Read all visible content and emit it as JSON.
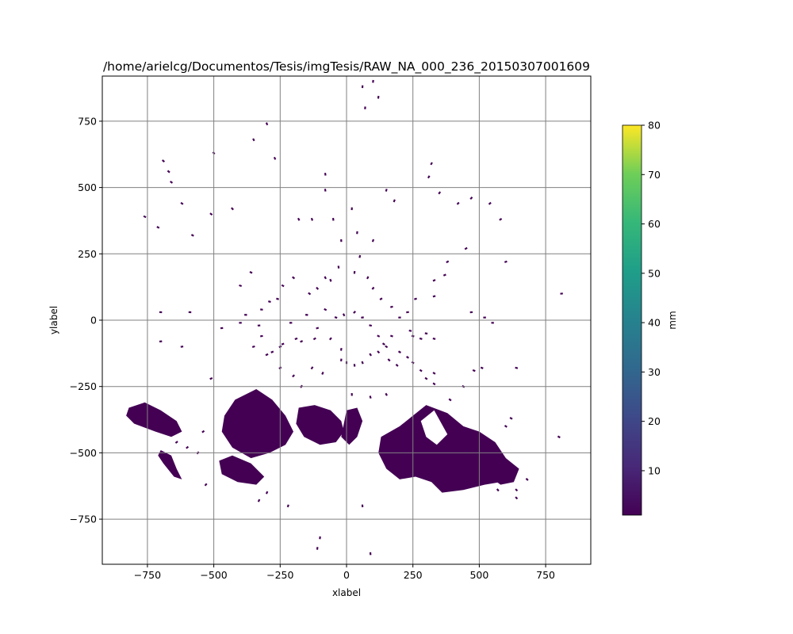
{
  "chart_data": {
    "type": "heatmap",
    "title": "/home/arielcg/Documentos/Tesis/imgTesis/RAW_NA_000_236_20150307001609",
    "xlabel": "xlabel",
    "ylabel": "ylabel",
    "xlim": [
      -920,
      920
    ],
    "ylim": [
      -920,
      920
    ],
    "xticks": [
      -750,
      -500,
      -250,
      0,
      250,
      500,
      750
    ],
    "yticks": [
      -750,
      -500,
      -250,
      0,
      250,
      500,
      750
    ],
    "xtick_labels": [
      "−750",
      "−500",
      "−250",
      "0",
      "250",
      "500",
      "750"
    ],
    "ytick_labels": [
      "−750",
      "−500",
      "−250",
      "0",
      "250",
      "500",
      "750"
    ],
    "grid": true,
    "colorbar": {
      "label": "mm",
      "range": [
        1,
        80
      ],
      "ticks": [
        10,
        20,
        30,
        40,
        50,
        60,
        70,
        80
      ],
      "tick_labels": [
        "10",
        "20",
        "30",
        "40",
        "50",
        "60",
        "70",
        "80"
      ],
      "colormap": "viridis"
    },
    "echo_color": "#440154",
    "echo_regions": [
      {
        "name": "south-west band",
        "polygon": [
          [
            -820,
            -330
          ],
          [
            -760,
            -310
          ],
          [
            -700,
            -340
          ],
          [
            -640,
            -380
          ],
          [
            -620,
            -420
          ],
          [
            -660,
            -440
          ],
          [
            -720,
            -420
          ],
          [
            -800,
            -390
          ],
          [
            -830,
            -360
          ]
        ]
      },
      {
        "name": "south-west lower",
        "polygon": [
          [
            -700,
            -490
          ],
          [
            -660,
            -510
          ],
          [
            -640,
            -560
          ],
          [
            -620,
            -600
          ],
          [
            -650,
            -590
          ],
          [
            -690,
            -540
          ],
          [
            -710,
            -510
          ]
        ]
      },
      {
        "name": "south-central west",
        "polygon": [
          [
            -420,
            -300
          ],
          [
            -340,
            -260
          ],
          [
            -280,
            -300
          ],
          [
            -230,
            -360
          ],
          [
            -200,
            -420
          ],
          [
            -230,
            -470
          ],
          [
            -290,
            -500
          ],
          [
            -360,
            -520
          ],
          [
            -430,
            -480
          ],
          [
            -470,
            -420
          ],
          [
            -460,
            -360
          ]
        ]
      },
      {
        "name": "south-central lower",
        "polygon": [
          [
            -480,
            -530
          ],
          [
            -430,
            -510
          ],
          [
            -360,
            -540
          ],
          [
            -310,
            -590
          ],
          [
            -340,
            -620
          ],
          [
            -410,
            -610
          ],
          [
            -470,
            -580
          ]
        ]
      },
      {
        "name": "south-central mid",
        "polygon": [
          [
            -180,
            -330
          ],
          [
            -120,
            -320
          ],
          [
            -60,
            -340
          ],
          [
            -20,
            -380
          ],
          [
            -10,
            -420
          ],
          [
            -40,
            -460
          ],
          [
            -100,
            -470
          ],
          [
            -160,
            -440
          ],
          [
            -190,
            -390
          ]
        ]
      },
      {
        "name": "south-central east",
        "polygon": [
          [
            0,
            -340
          ],
          [
            40,
            -330
          ],
          [
            60,
            -380
          ],
          [
            40,
            -440
          ],
          [
            10,
            -470
          ],
          [
            -20,
            -440
          ]
        ]
      },
      {
        "name": "south-east large",
        "polygon": [
          [
            130,
            -440
          ],
          [
            200,
            -400
          ],
          [
            250,
            -360
          ],
          [
            300,
            -320
          ],
          [
            380,
            -350
          ],
          [
            440,
            -400
          ],
          [
            500,
            -420
          ],
          [
            560,
            -460
          ],
          [
            600,
            -520
          ],
          [
            620,
            -560
          ],
          [
            580,
            -610
          ],
          [
            520,
            -620
          ],
          [
            440,
            -640
          ],
          [
            360,
            -650
          ],
          [
            320,
            -610
          ],
          [
            260,
            -590
          ],
          [
            200,
            -600
          ],
          [
            150,
            -560
          ],
          [
            120,
            -500
          ]
        ]
      },
      {
        "name": "far east lower",
        "polygon": [
          [
            540,
            -540
          ],
          [
            600,
            -520
          ],
          [
            650,
            -560
          ],
          [
            630,
            -610
          ],
          [
            580,
            -620
          ],
          [
            540,
            -590
          ]
        ]
      }
    ],
    "clear_notch": [
      [
        280,
        -380
      ],
      [
        330,
        -340
      ],
      [
        380,
        -430
      ],
      [
        340,
        -470
      ],
      [
        300,
        -440
      ]
    ],
    "echo_points": [
      [
        -760,
        390
      ],
      [
        -710,
        350
      ],
      [
        -690,
        600
      ],
      [
        -670,
        560
      ],
      [
        -660,
        520
      ],
      [
        -620,
        440
      ],
      [
        -580,
        320
      ],
      [
        -510,
        400
      ],
      [
        -500,
        630
      ],
      [
        -430,
        420
      ],
      [
        -350,
        680
      ],
      [
        -300,
        740
      ],
      [
        -270,
        610
      ],
      [
        -180,
        380
      ],
      [
        -130,
        380
      ],
      [
        -80,
        550
      ],
      [
        -80,
        490
      ],
      [
        -50,
        380
      ],
      [
        -20,
        300
      ],
      [
        20,
        420
      ],
      [
        60,
        880
      ],
      [
        70,
        800
      ],
      [
        100,
        900
      ],
      [
        120,
        840
      ],
      [
        100,
        300
      ],
      [
        150,
        490
      ],
      [
        180,
        450
      ],
      [
        320,
        590
      ],
      [
        310,
        540
      ],
      [
        350,
        480
      ],
      [
        420,
        440
      ],
      [
        450,
        270
      ],
      [
        470,
        460
      ],
      [
        540,
        440
      ],
      [
        580,
        380
      ],
      [
        600,
        220
      ],
      [
        810,
        100
      ],
      [
        -700,
        -80
      ],
      [
        -620,
        -100
      ],
      [
        -590,
        30
      ],
      [
        -700,
        30
      ],
      [
        -470,
        -30
      ],
      [
        -510,
        -220
      ],
      [
        -400,
        130
      ],
      [
        -360,
        180
      ],
      [
        -350,
        -100
      ],
      [
        -300,
        -130
      ],
      [
        -250,
        -180
      ],
      [
        -200,
        -210
      ],
      [
        -170,
        -250
      ],
      [
        -130,
        -180
      ],
      [
        -90,
        -200
      ],
      [
        -20,
        -110
      ],
      [
        -60,
        -70
      ],
      [
        -120,
        -70
      ],
      [
        -170,
        -80
      ],
      [
        -190,
        -70
      ],
      [
        -240,
        -90
      ],
      [
        -250,
        -100
      ],
      [
        -280,
        -120
      ],
      [
        -320,
        -60
      ],
      [
        -330,
        -20
      ],
      [
        -210,
        -10
      ],
      [
        -150,
        20
      ],
      [
        -110,
        -30
      ],
      [
        -80,
        40
      ],
      [
        -40,
        10
      ],
      [
        -10,
        20
      ],
      [
        30,
        30
      ],
      [
        60,
        10
      ],
      [
        90,
        -20
      ],
      [
        120,
        -60
      ],
      [
        150,
        -100
      ],
      [
        170,
        -60
      ],
      [
        200,
        -120
      ],
      [
        230,
        -140
      ],
      [
        250,
        -160
      ],
      [
        280,
        -190
      ],
      [
        300,
        -220
      ],
      [
        330,
        -240
      ],
      [
        390,
        -300
      ],
      [
        440,
        -250
      ],
      [
        480,
        -190
      ],
      [
        510,
        -180
      ],
      [
        640,
        -180
      ],
      [
        620,
        -370
      ],
      [
        600,
        -400
      ],
      [
        400,
        -480
      ],
      [
        330,
        -200
      ],
      [
        300,
        -50
      ],
      [
        280,
        -70
      ],
      [
        330,
        -70
      ],
      [
        260,
        80
      ],
      [
        330,
        90
      ],
      [
        330,
        150
      ],
      [
        370,
        170
      ],
      [
        380,
        220
      ],
      [
        470,
        30
      ],
      [
        520,
        10
      ],
      [
        550,
        -10
      ],
      [
        40,
        330
      ],
      [
        50,
        240
      ],
      [
        80,
        160
      ],
      [
        100,
        120
      ],
      [
        130,
        80
      ],
      [
        170,
        50
      ],
      [
        200,
        10
      ],
      [
        230,
        30
      ],
      [
        240,
        -40
      ],
      [
        250,
        -60
      ],
      [
        -140,
        100
      ],
      [
        -110,
        120
      ],
      [
        -80,
        160
      ],
      [
        -30,
        200
      ],
      [
        30,
        180
      ],
      [
        -60,
        150
      ],
      [
        -200,
        160
      ],
      [
        -240,
        130
      ],
      [
        -260,
        80
      ],
      [
        -290,
        70
      ],
      [
        -320,
        40
      ],
      [
        -380,
        20
      ],
      [
        -400,
        -10
      ],
      [
        -20,
        -150
      ],
      [
        0,
        -160
      ],
      [
        30,
        -170
      ],
      [
        60,
        -160
      ],
      [
        90,
        -130
      ],
      [
        120,
        -120
      ],
      [
        140,
        -90
      ],
      [
        160,
        -150
      ],
      [
        190,
        -170
      ],
      [
        20,
        -280
      ],
      [
        90,
        -290
      ],
      [
        150,
        -280
      ],
      [
        -220,
        -700
      ],
      [
        -330,
        -680
      ],
      [
        -300,
        -650
      ],
      [
        -100,
        -820
      ],
      [
        -110,
        -860
      ],
      [
        90,
        -880
      ],
      [
        60,
        -700
      ],
      [
        640,
        -640
      ],
      [
        570,
        -640
      ],
      [
        640,
        -670
      ],
      [
        680,
        -600
      ],
      [
        800,
        -440
      ],
      [
        -640,
        -460
      ],
      [
        -600,
        -480
      ],
      [
        -560,
        -500
      ],
      [
        -540,
        -420
      ],
      [
        -530,
        -620
      ]
    ]
  }
}
